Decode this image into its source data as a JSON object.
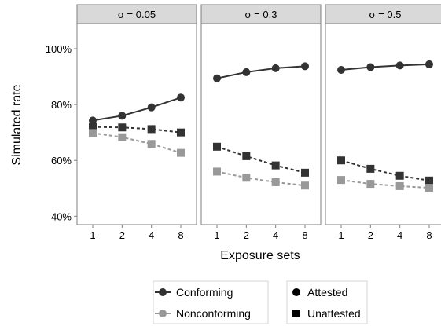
{
  "chart_data": {
    "type": "line",
    "xlabel": "Exposure sets",
    "ylabel": "Simulated rate",
    "x": [
      1,
      2,
      4,
      8
    ],
    "x_ticks": [
      "1",
      "2",
      "4",
      "8"
    ],
    "ylim": [
      0.37,
      1.09
    ],
    "y_ticks": [
      0.4,
      0.6,
      0.8,
      1.0
    ],
    "y_tick_labels": [
      "40%",
      "60%",
      "80%",
      "100%"
    ],
    "panels": [
      {
        "label": "σ = 0.05",
        "series": [
          {
            "name": "Conforming",
            "attestation": "Attested",
            "values": [
              0.743,
              0.76,
              0.79,
              0.825
            ]
          },
          {
            "name": "Conforming",
            "attestation": "Unattested",
            "values": [
              0.72,
              0.718,
              0.712,
              0.7
            ]
          },
          {
            "name": "Nonconforming",
            "attestation": "Unattested",
            "values": [
              0.698,
              0.683,
              0.659,
              0.627
            ]
          }
        ]
      },
      {
        "label": "σ = 0.3",
        "series": [
          {
            "name": "Conforming",
            "attestation": "Attested",
            "values": [
              0.894,
              0.916,
              0.93,
              0.937
            ]
          },
          {
            "name": "Conforming",
            "attestation": "Unattested",
            "values": [
              0.649,
              0.615,
              0.582,
              0.556
            ]
          },
          {
            "name": "Nonconforming",
            "attestation": "Unattested",
            "values": [
              0.56,
              0.538,
              0.522,
              0.51
            ]
          }
        ]
      },
      {
        "label": "σ = 0.5",
        "series": [
          {
            "name": "Conforming",
            "attestation": "Attested",
            "values": [
              0.924,
              0.934,
              0.94,
              0.944
            ]
          },
          {
            "name": "Conforming",
            "attestation": "Unattested",
            "values": [
              0.6,
              0.57,
              0.545,
              0.528
            ]
          },
          {
            "name": "Nonconforming",
            "attestation": "Unattested",
            "values": [
              0.53,
              0.516,
              0.508,
              0.502
            ]
          }
        ]
      }
    ],
    "colors": {
      "Conforming": "#333333",
      "Nonconforming": "#999999"
    },
    "legend": {
      "placement": "bottom",
      "color_entries": [
        "Conforming",
        "Nonconforming"
      ],
      "shape_entries": [
        "Attested",
        "Unattested"
      ]
    }
  }
}
